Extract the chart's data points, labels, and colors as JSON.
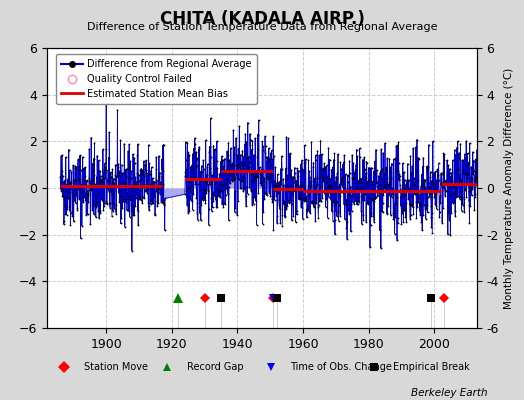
{
  "title": "CHITA (KADALA AIRP.)",
  "subtitle": "Difference of Station Temperature Data from Regional Average",
  "ylabel": "Monthly Temperature Anomaly Difference (°C)",
  "xlim": [
    1882,
    2013
  ],
  "ylim": [
    -6,
    6
  ],
  "yticks": [
    -6,
    -4,
    -2,
    0,
    2,
    4,
    6
  ],
  "xticks": [
    1900,
    1920,
    1940,
    1960,
    1980,
    2000
  ],
  "outer_bg": "#d8d8d8",
  "plot_bg": "#ffffff",
  "line_color": "#0000cc",
  "fill_color": "#aaaaee",
  "bias_color": "#dd0000",
  "seed": 42,
  "start_year": 1886,
  "end_year": 2012,
  "gap_start": 1917,
  "gap_end": 1924,
  "bias_segments": [
    {
      "start": 1886,
      "end": 1917,
      "value": 0.07
    },
    {
      "start": 1924,
      "end": 1935,
      "value": 0.38
    },
    {
      "start": 1935,
      "end": 1951,
      "value": 0.72
    },
    {
      "start": 1951,
      "end": 1960,
      "value": -0.05
    },
    {
      "start": 1960,
      "end": 2002,
      "value": -0.12
    },
    {
      "start": 2002,
      "end": 2013,
      "value": 0.18
    }
  ],
  "station_moves": [
    1930,
    1951,
    2003
  ],
  "record_gaps": [
    1922
  ],
  "obs_changes": [
    1951
  ],
  "empirical_breaks": [
    1935,
    1952,
    1999
  ],
  "watermark": "Berkeley Earth",
  "grid_color": "#cccccc",
  "marker_y": -4.7
}
